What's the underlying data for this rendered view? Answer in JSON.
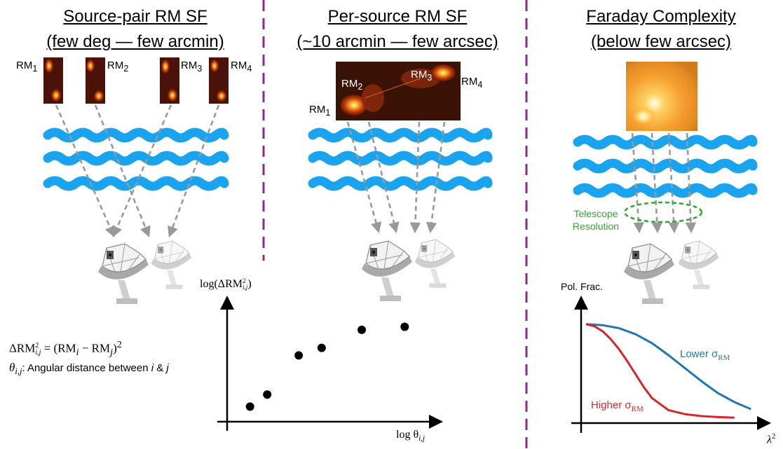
{
  "panels": {
    "left": {
      "title_line1": "Source-pair RM SF",
      "title_line2": "(few deg — few arcmin)",
      "labels": [
        "RM",
        "RM",
        "RM",
        "RM"
      ],
      "subs": [
        "1",
        "2",
        "3",
        "4"
      ]
    },
    "middle": {
      "title_line1": "Per-source RM SF",
      "title_line2": "(~10 arcmin — few arcsec)",
      "labels": [
        "RM",
        "RM",
        "RM",
        "RM"
      ],
      "subs": [
        "1",
        "2",
        "3",
        "4"
      ]
    },
    "right": {
      "title_line1": "Faraday Complexity",
      "title_line2": "(below few arcsec)",
      "telescope_label_1": "Telescope",
      "telescope_label_2": "Resolution"
    }
  },
  "equations": {
    "delta_rm_lhs": "ΔRM",
    "delta_rm_sup": "2",
    "delta_rm_sub": "i,j",
    "delta_rm_rhs_a": " = (RM",
    "delta_rm_rhs_i": "i",
    "delta_rm_rhs_b": " − RM",
    "delta_rm_rhs_j": "j",
    "delta_rm_rhs_c": ")",
    "delta_rm_rhs_sup": "2",
    "theta_symbol": "θ",
    "theta_sub": "i,j",
    "theta_desc_a": ": Angular distance between ",
    "theta_desc_i": "i",
    "theta_desc_b": " & ",
    "theta_desc_j": "j"
  },
  "chart_data": [
    {
      "type": "scatter",
      "xlabel_prefix": "log θ",
      "xlabel_sub": "i,j",
      "ylabel_prefix": "log(ΔRM",
      "ylabel_sup": "2",
      "ylabel_sub": "i,j",
      "ylabel_suffix": ")",
      "points": [
        {
          "x": 0.8,
          "y": 1.0
        },
        {
          "x": 1.4,
          "y": 1.8
        },
        {
          "x": 2.5,
          "y": 4.4
        },
        {
          "x": 3.3,
          "y": 4.9
        },
        {
          "x": 4.7,
          "y": 6.1
        },
        {
          "x": 6.2,
          "y": 6.3
        }
      ],
      "xlim": [
        0,
        7
      ],
      "ylim": [
        0,
        8
      ]
    },
    {
      "type": "line",
      "ylabel": "Pol. Frac.",
      "xlabel": "λ",
      "xlabel_sup": "2",
      "series": [
        {
          "name_prefix": "Lower σ",
          "name_sub": "RM",
          "color": "#1f77b4",
          "x": [
            0,
            1,
            2,
            3,
            4,
            5,
            6,
            7,
            8,
            9,
            10
          ],
          "y": [
            0.97,
            0.96,
            0.93,
            0.87,
            0.78,
            0.66,
            0.53,
            0.4,
            0.28,
            0.19,
            0.12
          ]
        },
        {
          "name_prefix": "Higher σ",
          "name_sub": "RM",
          "color": "#d62728",
          "x": [
            0,
            0.5,
            1,
            1.5,
            2,
            2.5,
            3,
            3.5,
            4,
            5,
            6,
            7,
            8,
            9
          ],
          "y": [
            0.97,
            0.95,
            0.9,
            0.82,
            0.72,
            0.6,
            0.47,
            0.34,
            0.23,
            0.11,
            0.07,
            0.05,
            0.04,
            0.035
          ]
        }
      ],
      "xlim": [
        -0.3,
        10.8
      ],
      "ylim": [
        -0.02,
        1.2
      ]
    }
  ],
  "colors": {
    "divider": "#8e2a8e",
    "waves": "#1aa3ee",
    "arrows": "#999999",
    "ellipse": "#2ea82e"
  },
  "icons": [
    "radio-dish-icon",
    "source-image-thumbnail"
  ]
}
